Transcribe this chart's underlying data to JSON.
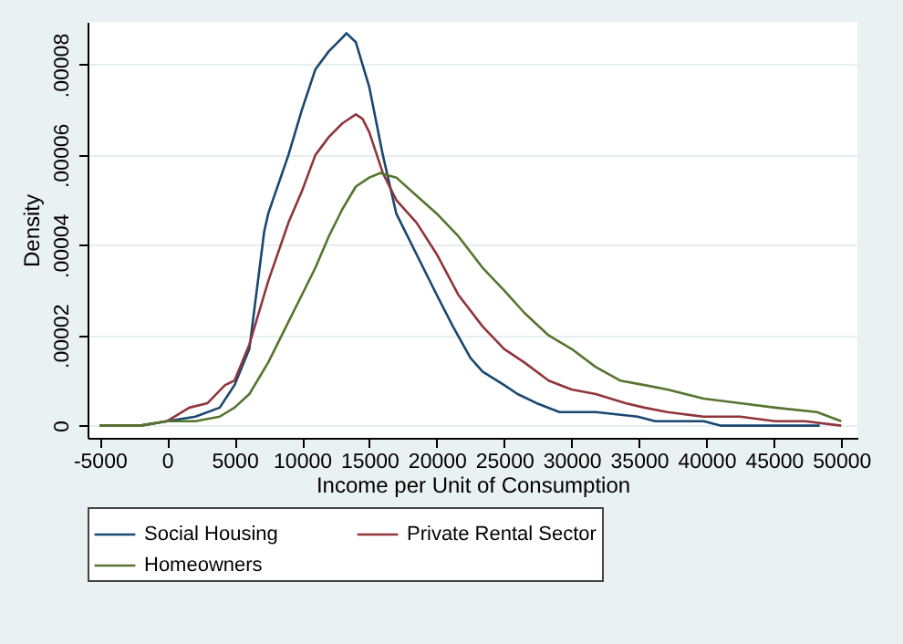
{
  "chart_data": {
    "type": "line",
    "xlabel": "Income per Unit of Consumption",
    "ylabel": "Density",
    "xlim": [
      -5900,
      51200
    ],
    "ylim": [
      -2.7e-06,
      8.95e-05
    ],
    "xticks": [
      -5000,
      0,
      5000,
      10000,
      15000,
      20000,
      25000,
      30000,
      35000,
      40000,
      45000,
      50000
    ],
    "yticks": [
      0,
      {
        "value": 2e-05,
        "label": ".00002"
      },
      {
        "value": 4e-05,
        "label": ".00004"
      },
      {
        "value": 6e-05,
        "label": ".00006"
      },
      {
        "value": 8e-05,
        "label": ".00008"
      }
    ],
    "grid": "y",
    "legend": "bottom",
    "marker": "none",
    "line_style": "solid",
    "series": [
      {
        "name": "Social Housing",
        "color": "#1a476f",
        "x": [
          -5000,
          -2000,
          0,
          2100,
          3900,
          5000,
          6100,
          7200,
          7500,
          9000,
          10000,
          11000,
          12000,
          13000,
          13300,
          14000,
          14700,
          15000,
          16000,
          17000,
          18500,
          20000,
          21200,
          22500,
          23400,
          25000,
          26000,
          27400,
          29100,
          31800,
          34900,
          36200,
          39800,
          41100,
          45100,
          48400
        ],
        "values": [
          0,
          0,
          1e-06,
          2e-06,
          4e-06,
          9e-06,
          1.7e-05,
          4.3e-05,
          4.7e-05,
          6e-05,
          7e-05,
          7.9e-05,
          8.3e-05,
          8.6e-05,
          8.7e-05,
          8.5e-05,
          7.8e-05,
          7.5e-05,
          6e-05,
          4.7e-05,
          3.8e-05,
          2.9e-05,
          2.2e-05,
          1.5e-05,
          1.2e-05,
          9e-06,
          7e-06,
          5e-06,
          3e-06,
          3e-06,
          2e-06,
          1e-06,
          1e-06,
          0,
          0,
          0
        ]
      },
      {
        "name": "Private Rental Sector",
        "color": "#90353b",
        "x": [
          -5000,
          -2000,
          0,
          1650,
          3000,
          4300,
          5000,
          6100,
          7500,
          9000,
          10000,
          11000,
          12000,
          13000,
          14000,
          14500,
          15000,
          16000,
          17000,
          18500,
          20000,
          21600,
          23400,
          25000,
          26500,
          28300,
          30000,
          31800,
          34000,
          35400,
          37100,
          39800,
          42500,
          45100,
          47300,
          50000
        ],
        "values": [
          0,
          0,
          1e-06,
          4e-06,
          5e-06,
          9e-06,
          1e-05,
          1.8e-05,
          3.2e-05,
          4.5e-05,
          5.2e-05,
          6e-05,
          6.4e-05,
          6.7e-05,
          6.9e-05,
          6.8e-05,
          6.5e-05,
          5.6e-05,
          5e-05,
          4.5e-05,
          3.8e-05,
          2.9e-05,
          2.2e-05,
          1.7e-05,
          1.4e-05,
          1e-05,
          8e-06,
          7e-06,
          5e-06,
          4e-06,
          3e-06,
          2e-06,
          2e-06,
          1e-06,
          1e-06,
          0
        ]
      },
      {
        "name": "Homeowners",
        "color": "#55752f",
        "x": [
          -5000,
          -2000,
          0,
          2100,
          3900,
          5000,
          6100,
          7500,
          9000,
          10000,
          11000,
          12000,
          13000,
          14000,
          15000,
          15800,
          17000,
          18500,
          20000,
          21600,
          23400,
          25000,
          26500,
          28300,
          30000,
          31800,
          33600,
          35400,
          37100,
          39800,
          42500,
          45100,
          48200,
          50000
        ],
        "values": [
          0,
          0,
          1e-06,
          1e-06,
          2e-06,
          4e-06,
          7e-06,
          1.4e-05,
          2.3e-05,
          2.9e-05,
          3.5e-05,
          4.2e-05,
          4.8e-05,
          5.3e-05,
          5.5e-05,
          5.6e-05,
          5.5e-05,
          5.1e-05,
          4.7e-05,
          4.2e-05,
          3.5e-05,
          3e-05,
          2.5e-05,
          2e-05,
          1.7e-05,
          1.3e-05,
          1e-05,
          9e-06,
          8e-06,
          6e-06,
          5e-06,
          4e-06,
          3e-06,
          1e-06
        ]
      }
    ]
  }
}
